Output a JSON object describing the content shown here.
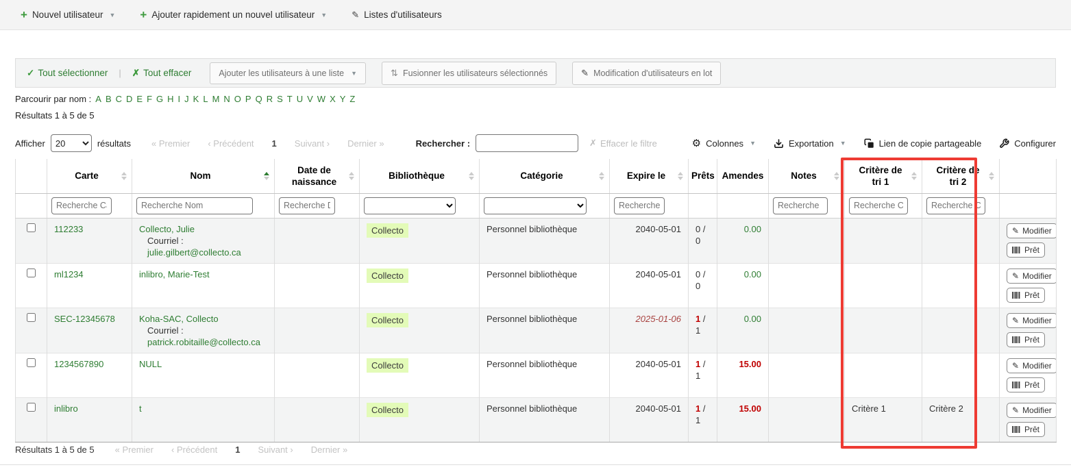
{
  "colors": {
    "link_green": "#2e7d32",
    "badge_bg": "#e3fbb8",
    "alert_red": "#c00000",
    "expired_red": "#a94442",
    "highlight_box": "#ee3b33"
  },
  "top_toolbar": {
    "new_user": "Nouvel utilisateur",
    "quick_add": "Ajouter rapidement un nouvel utilisateur",
    "patron_lists": "Listes d'utilisateurs"
  },
  "selection_toolbar": {
    "select_all": "Tout sélectionner",
    "clear_all": "Tout effacer",
    "add_to_list": "Ajouter les utilisateurs à une liste",
    "merge_selected": "Fusionner les utilisateurs sélectionnés",
    "batch_edit": "Modification d'utilisateurs en lot"
  },
  "browse": {
    "label": "Parcourir par nom :",
    "letters": [
      "A",
      "B",
      "C",
      "D",
      "E",
      "F",
      "G",
      "H",
      "I",
      "J",
      "K",
      "L",
      "M",
      "N",
      "O",
      "P",
      "Q",
      "R",
      "S",
      "T",
      "U",
      "V",
      "W",
      "X",
      "Y",
      "Z"
    ]
  },
  "results_summary": "Résultats 1 à 5 de 5",
  "controls": {
    "show_label": "Afficher",
    "page_size": "20",
    "results_label": "résultats",
    "search_label": "Rechercher :",
    "clear_filter": "Effacer le filtre",
    "columns": "Colonnes",
    "export": "Exportation",
    "share_link": "Lien de copie partageable",
    "configure": "Configurer"
  },
  "pagination": {
    "first": "« Premier",
    "previous": "‹ Précédent",
    "page": "1",
    "next": "Suivant ›",
    "last": "Dernier »"
  },
  "table": {
    "columns": [
      {
        "id": "select",
        "label": "",
        "sort": "none",
        "filter": "none"
      },
      {
        "id": "card",
        "label": "Carte",
        "sort": "both",
        "filter": "input",
        "placeholder": "Recherche Cart"
      },
      {
        "id": "name",
        "label": "Nom",
        "sort": "asc",
        "filter": "input",
        "placeholder": "Recherche Nom"
      },
      {
        "id": "dob",
        "label": "Date de naissance",
        "sort": "both",
        "filter": "input",
        "placeholder": "Recherche Da"
      },
      {
        "id": "library",
        "label": "Bibliothèque",
        "sort": "both",
        "filter": "select"
      },
      {
        "id": "category",
        "label": "Catégorie",
        "sort": "both",
        "filter": "select"
      },
      {
        "id": "expires",
        "label": "Expire le",
        "sort": "both",
        "filter": "input",
        "placeholder": "Recherche E"
      },
      {
        "id": "checkouts",
        "label": "Prêts",
        "sort": "none",
        "filter": "none"
      },
      {
        "id": "fines",
        "label": "Amendes",
        "sort": "none",
        "filter": "none"
      },
      {
        "id": "notes",
        "label": "Notes",
        "sort": "both",
        "filter": "input",
        "placeholder": "Recherche"
      },
      {
        "id": "sort1",
        "label": "Critère de tri 1",
        "sort": "both",
        "filter": "input",
        "placeholder": "Recherche C"
      },
      {
        "id": "sort2",
        "label": "Critère de tri 2",
        "sort": "both",
        "filter": "input",
        "placeholder": "Recherche C"
      },
      {
        "id": "actions",
        "label": "",
        "sort": "none",
        "filter": "none"
      }
    ],
    "row_actions": {
      "edit": "Modifier",
      "checkout": "Prêt"
    },
    "rows": [
      {
        "card": "112233",
        "name": "Collecto, Julie",
        "email_label": "Courriel :",
        "email": "julie.gilbert@collecto.ca",
        "dob": "",
        "library": "Collecto",
        "category": "Personnel bibliothèque",
        "expires": "2040-05-01",
        "expired": false,
        "checkouts_out": "0",
        "checkouts_total": "0",
        "checkouts_alert": false,
        "fines": "0.00",
        "fines_alert": false,
        "notes": "",
        "sort1": "",
        "sort2": ""
      },
      {
        "card": "ml1234",
        "name": "inlibro, Marie-Test",
        "email_label": "",
        "email": "",
        "dob": "",
        "library": "Collecto",
        "category": "Personnel bibliothèque",
        "expires": "2040-05-01",
        "expired": false,
        "checkouts_out": "0",
        "checkouts_total": "0",
        "checkouts_alert": false,
        "fines": "0.00",
        "fines_alert": false,
        "notes": "",
        "sort1": "",
        "sort2": ""
      },
      {
        "card": "SEC-12345678",
        "name": "Koha-SAC, Collecto",
        "email_label": "Courriel :",
        "email": "patrick.robitaille@collecto.ca",
        "dob": "",
        "library": "Collecto",
        "category": "Personnel bibliothèque",
        "expires": "2025-01-06",
        "expired": true,
        "checkouts_out": "1",
        "checkouts_total": "1",
        "checkouts_alert": true,
        "fines": "0.00",
        "fines_alert": false,
        "notes": "",
        "sort1": "",
        "sort2": ""
      },
      {
        "card": "1234567890",
        "name": "NULL",
        "email_label": "",
        "email": "",
        "dob": "",
        "library": "Collecto",
        "category": "Personnel bibliothèque",
        "expires": "2040-05-01",
        "expired": false,
        "checkouts_out": "1",
        "checkouts_total": "1",
        "checkouts_alert": true,
        "fines": "15.00",
        "fines_alert": true,
        "notes": "",
        "sort1": "",
        "sort2": ""
      },
      {
        "card": "inlibro",
        "name": "t",
        "email_label": "",
        "email": "",
        "dob": "",
        "library": "Collecto",
        "category": "Personnel bibliothèque",
        "expires": "2040-05-01",
        "expired": false,
        "checkouts_out": "1",
        "checkouts_total": "1",
        "checkouts_alert": true,
        "fines": "15.00",
        "fines_alert": true,
        "notes": "",
        "sort1": "Critère 1",
        "sort2": "Critère 2"
      }
    ]
  },
  "footer": {
    "results_summary": "Résultats 1 à 5 de 5"
  }
}
